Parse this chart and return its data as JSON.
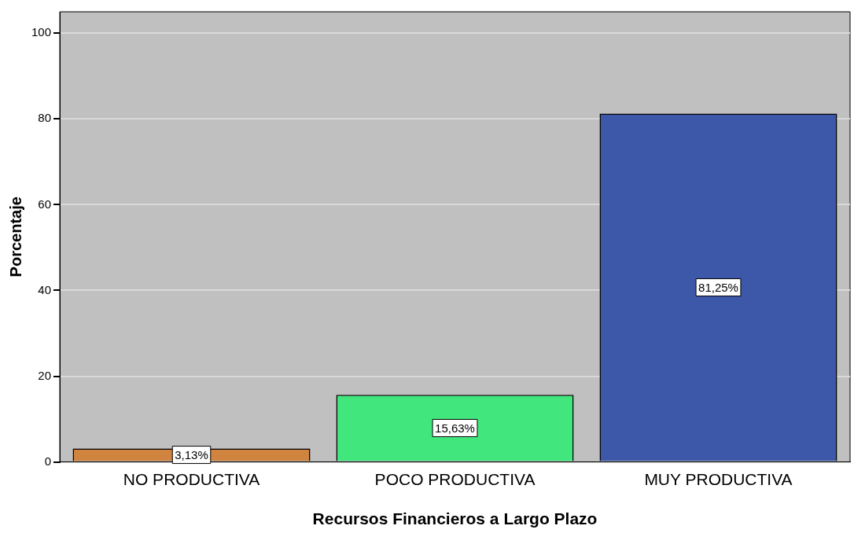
{
  "chart_data": {
    "type": "bar",
    "xlabel": "Recursos Financieros a Largo Plazo",
    "ylabel": "Porcentaje",
    "categories": [
      "NO PRODUCTIVA",
      "POCO PRODUCTIVA",
      "MUY PRODUCTIVA"
    ],
    "values": [
      3.13,
      15.63,
      81.25
    ],
    "colors": [
      "#d0843f",
      "#41e67c",
      "#3d58a8"
    ],
    "value_labels": [
      "3,13%",
      "15,63%",
      "81,25%"
    ],
    "ylim": [
      0,
      105
    ],
    "yticks": [
      0,
      20,
      40,
      60,
      80,
      100
    ],
    "grid": "y",
    "legend": false
  }
}
